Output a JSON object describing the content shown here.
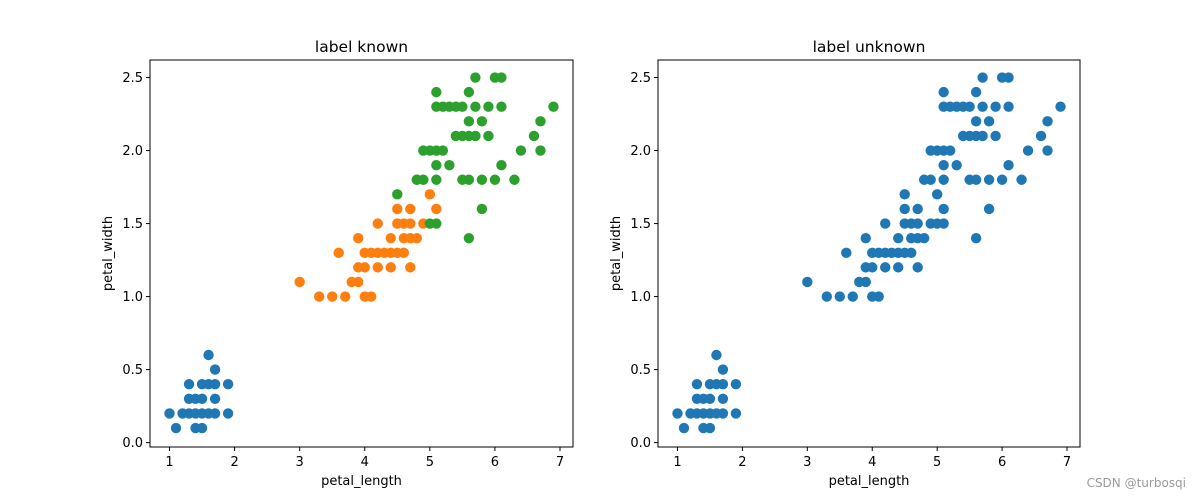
{
  "watermark": "CSDN @turbosqi",
  "chart_data": [
    {
      "type": "scatter",
      "title": "label known",
      "xlabel": "petal_length",
      "ylabel": "petal_width",
      "xlim": [
        0.7,
        7.2
      ],
      "ylim": [
        -0.03,
        2.62
      ],
      "xticks": [
        "1",
        "2",
        "3",
        "4",
        "5",
        "6",
        "7"
      ],
      "yticks": [
        "0.0",
        "0.5",
        "1.0",
        "1.5",
        "2.0",
        "2.5"
      ],
      "grid": false,
      "series": [
        {
          "color": "#1f77b4",
          "points": [
            [
              1.0,
              0.2
            ],
            [
              1.1,
              0.1
            ],
            [
              1.2,
              0.2
            ],
            [
              1.3,
              0.2
            ],
            [
              1.3,
              0.3
            ],
            [
              1.3,
              0.4
            ],
            [
              1.4,
              0.2
            ],
            [
              1.4,
              0.3
            ],
            [
              1.4,
              0.1
            ],
            [
              1.5,
              0.2
            ],
            [
              1.5,
              0.1
            ],
            [
              1.5,
              0.3
            ],
            [
              1.5,
              0.4
            ],
            [
              1.6,
              0.2
            ],
            [
              1.6,
              0.4
            ],
            [
              1.6,
              0.6
            ],
            [
              1.7,
              0.2
            ],
            [
              1.7,
              0.3
            ],
            [
              1.7,
              0.4
            ],
            [
              1.7,
              0.5
            ],
            [
              1.9,
              0.2
            ],
            [
              1.9,
              0.4
            ]
          ]
        },
        {
          "color": "#ff7f0e",
          "points": [
            [
              3.0,
              1.1
            ],
            [
              3.3,
              1.0
            ],
            [
              3.5,
              1.0
            ],
            [
              3.6,
              1.3
            ],
            [
              3.7,
              1.0
            ],
            [
              3.8,
              1.1
            ],
            [
              3.9,
              1.1
            ],
            [
              3.9,
              1.2
            ],
            [
              3.9,
              1.4
            ],
            [
              4.0,
              1.0
            ],
            [
              4.0,
              1.2
            ],
            [
              4.0,
              1.3
            ],
            [
              4.1,
              1.0
            ],
            [
              4.1,
              1.3
            ],
            [
              4.2,
              1.2
            ],
            [
              4.2,
              1.3
            ],
            [
              4.2,
              1.5
            ],
            [
              4.3,
              1.3
            ],
            [
              4.4,
              1.2
            ],
            [
              4.4,
              1.3
            ],
            [
              4.4,
              1.4
            ],
            [
              4.5,
              1.3
            ],
            [
              4.5,
              1.5
            ],
            [
              4.5,
              1.6
            ],
            [
              4.6,
              1.3
            ],
            [
              4.6,
              1.4
            ],
            [
              4.6,
              1.5
            ],
            [
              4.7,
              1.2
            ],
            [
              4.7,
              1.4
            ],
            [
              4.7,
              1.5
            ],
            [
              4.7,
              1.6
            ],
            [
              4.8,
              1.4
            ],
            [
              4.8,
              1.8
            ],
            [
              4.9,
              1.5
            ],
            [
              5.0,
              1.7
            ],
            [
              5.1,
              1.6
            ]
          ]
        },
        {
          "color": "#2ca02c",
          "points": [
            [
              4.5,
              1.7
            ],
            [
              4.8,
              1.8
            ],
            [
              4.9,
              1.8
            ],
            [
              4.9,
              2.0
            ],
            [
              5.0,
              1.5
            ],
            [
              5.0,
              2.0
            ],
            [
              5.1,
              1.5
            ],
            [
              5.1,
              1.8
            ],
            [
              5.1,
              1.9
            ],
            [
              5.1,
              2.0
            ],
            [
              5.1,
              2.3
            ],
            [
              5.1,
              2.4
            ],
            [
              5.2,
              2.0
            ],
            [
              5.2,
              2.3
            ],
            [
              5.3,
              1.9
            ],
            [
              5.3,
              2.3
            ],
            [
              5.4,
              2.1
            ],
            [
              5.4,
              2.3
            ],
            [
              5.5,
              2.1
            ],
            [
              5.5,
              1.8
            ],
            [
              5.5,
              2.3
            ],
            [
              5.6,
              1.4
            ],
            [
              5.6,
              1.8
            ],
            [
              5.6,
              2.1
            ],
            [
              5.6,
              2.2
            ],
            [
              5.6,
              2.4
            ],
            [
              5.7,
              2.1
            ],
            [
              5.7,
              2.3
            ],
            [
              5.7,
              2.5
            ],
            [
              5.8,
              1.6
            ],
            [
              5.8,
              1.8
            ],
            [
              5.8,
              2.2
            ],
            [
              5.9,
              2.1
            ],
            [
              5.9,
              2.3
            ],
            [
              6.0,
              1.8
            ],
            [
              6.0,
              2.5
            ],
            [
              6.1,
              1.9
            ],
            [
              6.1,
              2.3
            ],
            [
              6.1,
              2.5
            ],
            [
              6.3,
              1.8
            ],
            [
              6.4,
              2.0
            ],
            [
              6.6,
              2.1
            ],
            [
              6.7,
              2.0
            ],
            [
              6.7,
              2.2
            ],
            [
              6.9,
              2.3
            ]
          ]
        }
      ]
    },
    {
      "type": "scatter",
      "title": "label unknown",
      "xlabel": "petal_length",
      "ylabel": "petal_width",
      "xlim": [
        0.7,
        7.2
      ],
      "ylim": [
        -0.03,
        2.62
      ],
      "xticks": [
        "1",
        "2",
        "3",
        "4",
        "5",
        "6",
        "7"
      ],
      "yticks": [
        "0.0",
        "0.5",
        "1.0",
        "1.5",
        "2.0",
        "2.5"
      ],
      "grid": false,
      "series": [
        {
          "color": "#1f77b4",
          "points": [
            [
              1.0,
              0.2
            ],
            [
              1.1,
              0.1
            ],
            [
              1.2,
              0.2
            ],
            [
              1.3,
              0.2
            ],
            [
              1.3,
              0.3
            ],
            [
              1.3,
              0.4
            ],
            [
              1.4,
              0.2
            ],
            [
              1.4,
              0.3
            ],
            [
              1.4,
              0.1
            ],
            [
              1.5,
              0.2
            ],
            [
              1.5,
              0.1
            ],
            [
              1.5,
              0.3
            ],
            [
              1.5,
              0.4
            ],
            [
              1.6,
              0.2
            ],
            [
              1.6,
              0.4
            ],
            [
              1.6,
              0.6
            ],
            [
              1.7,
              0.2
            ],
            [
              1.7,
              0.3
            ],
            [
              1.7,
              0.4
            ],
            [
              1.7,
              0.5
            ],
            [
              1.9,
              0.2
            ],
            [
              1.9,
              0.4
            ],
            [
              3.0,
              1.1
            ],
            [
              3.3,
              1.0
            ],
            [
              3.5,
              1.0
            ],
            [
              3.6,
              1.3
            ],
            [
              3.7,
              1.0
            ],
            [
              3.8,
              1.1
            ],
            [
              3.9,
              1.1
            ],
            [
              3.9,
              1.2
            ],
            [
              3.9,
              1.4
            ],
            [
              4.0,
              1.0
            ],
            [
              4.0,
              1.2
            ],
            [
              4.0,
              1.3
            ],
            [
              4.1,
              1.0
            ],
            [
              4.1,
              1.3
            ],
            [
              4.2,
              1.2
            ],
            [
              4.2,
              1.3
            ],
            [
              4.2,
              1.5
            ],
            [
              4.3,
              1.3
            ],
            [
              4.4,
              1.2
            ],
            [
              4.4,
              1.3
            ],
            [
              4.4,
              1.4
            ],
            [
              4.5,
              1.3
            ],
            [
              4.5,
              1.5
            ],
            [
              4.5,
              1.6
            ],
            [
              4.6,
              1.3
            ],
            [
              4.6,
              1.4
            ],
            [
              4.6,
              1.5
            ],
            [
              4.7,
              1.2
            ],
            [
              4.7,
              1.4
            ],
            [
              4.7,
              1.5
            ],
            [
              4.7,
              1.6
            ],
            [
              4.8,
              1.4
            ],
            [
              4.8,
              1.8
            ],
            [
              4.9,
              1.5
            ],
            [
              5.0,
              1.7
            ],
            [
              5.1,
              1.6
            ],
            [
              4.5,
              1.7
            ],
            [
              4.9,
              1.8
            ],
            [
              4.9,
              2.0
            ],
            [
              5.0,
              1.5
            ],
            [
              5.0,
              2.0
            ],
            [
              5.1,
              1.5
            ],
            [
              5.1,
              1.8
            ],
            [
              5.1,
              1.9
            ],
            [
              5.1,
              2.0
            ],
            [
              5.1,
              2.3
            ],
            [
              5.1,
              2.4
            ],
            [
              5.2,
              2.0
            ],
            [
              5.2,
              2.3
            ],
            [
              5.3,
              1.9
            ],
            [
              5.3,
              2.3
            ],
            [
              5.4,
              2.1
            ],
            [
              5.4,
              2.3
            ],
            [
              5.5,
              2.1
            ],
            [
              5.5,
              1.8
            ],
            [
              5.5,
              2.3
            ],
            [
              5.6,
              1.4
            ],
            [
              5.6,
              1.8
            ],
            [
              5.6,
              2.1
            ],
            [
              5.6,
              2.2
            ],
            [
              5.6,
              2.4
            ],
            [
              5.7,
              2.1
            ],
            [
              5.7,
              2.3
            ],
            [
              5.7,
              2.5
            ],
            [
              5.8,
              1.6
            ],
            [
              5.8,
              1.8
            ],
            [
              5.8,
              2.2
            ],
            [
              5.9,
              2.1
            ],
            [
              5.9,
              2.3
            ],
            [
              6.0,
              1.8
            ],
            [
              6.0,
              2.5
            ],
            [
              6.1,
              1.9
            ],
            [
              6.1,
              2.3
            ],
            [
              6.1,
              2.5
            ],
            [
              6.3,
              1.8
            ],
            [
              6.4,
              2.0
            ],
            [
              6.6,
              2.1
            ],
            [
              6.7,
              2.0
            ],
            [
              6.7,
              2.2
            ],
            [
              6.9,
              2.3
            ]
          ]
        }
      ]
    }
  ]
}
